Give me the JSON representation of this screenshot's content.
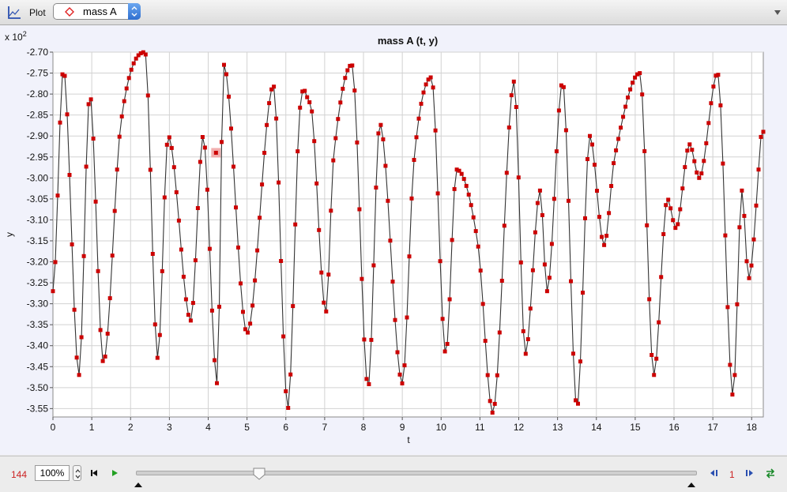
{
  "toolbar": {
    "plot_label": "Plot",
    "plot_icon": "plot-axes-icon",
    "selected_track": "mass A",
    "track_marker": "diamond-outline-icon",
    "track_marker_color": "#e02020",
    "menu_icon": "chevron-down-icon"
  },
  "chart_data": {
    "type": "scatter",
    "title": "mass A (t, y)",
    "xlabel": "t",
    "ylabel": "y",
    "y_multiplier": "x 10",
    "y_multiplier_exp": "2",
    "xlim": [
      0,
      18.3
    ],
    "ylim": [
      -3.57,
      -2.7
    ],
    "x_ticks": [
      "0",
      "1",
      "2",
      "3",
      "4",
      "5",
      "6",
      "7",
      "8",
      "9",
      "10",
      "11",
      "12",
      "13",
      "14",
      "15",
      "16",
      "17",
      "18"
    ],
    "y_ticks": [
      "-2.70",
      "-2.75",
      "-2.80",
      "-2.85",
      "-2.90",
      "-2.95",
      "-3.00",
      "-3.05",
      "-3.10",
      "-3.15",
      "-3.20",
      "-3.25",
      "-3.30",
      "-3.35",
      "-3.40",
      "-3.45",
      "-3.50",
      "-3.55"
    ],
    "grid": true,
    "marker_color": "#cc0000",
    "line_color": "#333333",
    "selected_point": {
      "x": 4.2,
      "y": -2.94
    },
    "series": [
      {
        "x": [
          0,
          0.27,
          0.67,
          0.95,
          1.3,
          1.75,
          2.37,
          2.7,
          2.97,
          3.55,
          3.87,
          4.23,
          4.4,
          5.0,
          5.68,
          6.05,
          6.35,
          6.62,
          7.03,
          7.23,
          7.7,
          8.12,
          8.42,
          9.0,
          9.3,
          9.75,
          10.12,
          10.4,
          10.95,
          11.33,
          11.88,
          12.17,
          12.55,
          12.73,
          13.13,
          13.5,
          13.83,
          14.2,
          14.47,
          15.12,
          15.48,
          15.83,
          16.05,
          16.4,
          16.65,
          17.12,
          17.52,
          17.75,
          17.92,
          18.25
        ],
        "y": [
          -3.27,
          -2.74,
          -3.47,
          -2.8,
          -3.44,
          -2.87,
          -2.7,
          -3.43,
          -2.9,
          -3.34,
          -2.9,
          -3.49,
          -2.73,
          -3.37,
          -2.78,
          -3.55,
          -2.85,
          -2.82,
          -3.32,
          -2.95,
          -2.73,
          -3.5,
          -2.87,
          -3.49,
          -2.96,
          -2.76,
          -3.42,
          -2.98,
          -3.16,
          -3.56,
          -2.77,
          -3.42,
          -3.03,
          -3.27,
          -2.77,
          -3.55,
          -2.9,
          -3.16,
          -2.95,
          -2.75,
          -3.47,
          -3.05,
          -3.12,
          -2.92,
          -3.0,
          -2.75,
          -3.52,
          -3.03,
          -3.24,
          -2.89
        ]
      }
    ]
  },
  "statusbar": {
    "frame_count": "144",
    "zoom": "100%",
    "slider_fraction": 0.22,
    "step_size": "1",
    "skip_start_icon": "skip-to-start-icon",
    "play_icon": "play-icon",
    "step_back_icon": "step-back-icon",
    "step_forward_icon": "step-forward-icon",
    "loop_icon": "loop-icon"
  }
}
